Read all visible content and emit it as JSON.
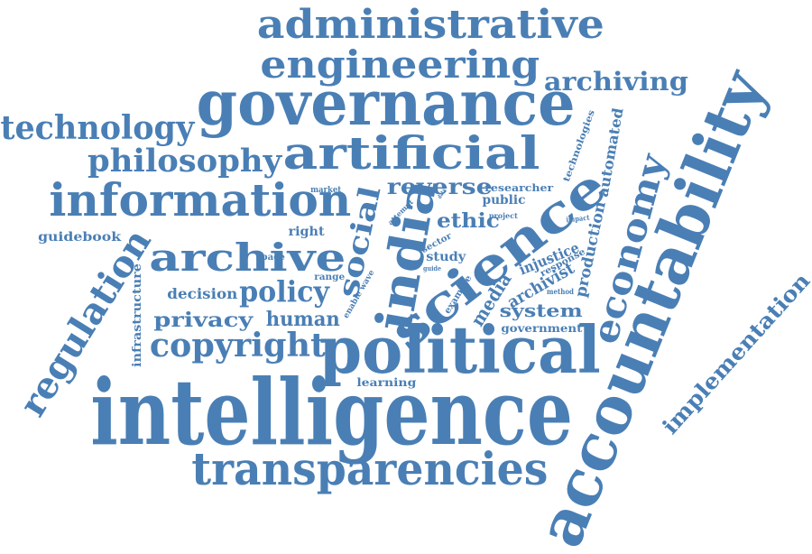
{
  "color": "#4a7fb5",
  "words": [
    {
      "key": "intelligence",
      "text": "intelligence"
    },
    {
      "key": "accountability",
      "text": "accountability"
    },
    {
      "key": "governance",
      "text": "governance"
    },
    {
      "key": "political",
      "text": "political"
    },
    {
      "key": "transparencies",
      "text": "transparencies"
    },
    {
      "key": "administrative",
      "text": "administrative"
    },
    {
      "key": "artificial",
      "text": "artificial"
    },
    {
      "key": "information",
      "text": "information"
    },
    {
      "key": "science",
      "text": "science"
    },
    {
      "key": "engineering",
      "text": "engineering"
    },
    {
      "key": "archive",
      "text": "archive"
    },
    {
      "key": "india",
      "text": "india"
    },
    {
      "key": "regulation",
      "text": "regulation"
    },
    {
      "key": "economy",
      "text": "economy"
    },
    {
      "key": "copyright",
      "text": "copyright"
    },
    {
      "key": "technology",
      "text": "technology"
    },
    {
      "key": "philosophy",
      "text": "philosophy"
    },
    {
      "key": "social",
      "text": "social"
    },
    {
      "key": "policy",
      "text": "policy"
    },
    {
      "key": "archiving",
      "text": "archiving"
    },
    {
      "key": "implementation",
      "text": "implementation"
    },
    {
      "key": "privacy",
      "text": "privacy"
    },
    {
      "key": "human",
      "text": "human"
    },
    {
      "key": "reverse",
      "text": "reverse"
    },
    {
      "key": "ethic",
      "text": "ethic"
    },
    {
      "key": "system",
      "text": "system"
    },
    {
      "key": "decision",
      "text": "decision"
    },
    {
      "key": "automated",
      "text": "automated"
    },
    {
      "key": "production",
      "text": "production"
    },
    {
      "key": "media",
      "text": "media"
    },
    {
      "key": "archivist",
      "text": "archivist"
    },
    {
      "key": "injustice",
      "text": "injustice"
    },
    {
      "key": "guidebook",
      "text": "guidebook"
    },
    {
      "key": "public",
      "text": "public"
    },
    {
      "key": "study",
      "text": "study"
    },
    {
      "key": "right",
      "text": "right"
    },
    {
      "key": "infrastructure",
      "text": "infrastructure"
    },
    {
      "key": "government",
      "text": "government"
    },
    {
      "key": "learning",
      "text": "learning"
    },
    {
      "key": "technologies",
      "text": "technologies"
    },
    {
      "key": "researcher",
      "text": "researcher"
    },
    {
      "key": "response",
      "text": "response"
    },
    {
      "key": "sector",
      "text": "sector"
    },
    {
      "key": "examine",
      "text": "examine"
    },
    {
      "key": "space",
      "text": "space"
    },
    {
      "key": "range",
      "text": "range"
    },
    {
      "key": "market",
      "text": "market"
    },
    {
      "key": "attempt",
      "text": "attempt"
    },
    {
      "key": "project",
      "text": "project"
    },
    {
      "key": "impact",
      "text": "impact"
    },
    {
      "key": "method",
      "text": "method"
    },
    {
      "key": "guide",
      "text": "guide"
    },
    {
      "key": "enable_wave",
      "text": "enable wave"
    },
    {
      "key": "data",
      "text": "data"
    }
  ]
}
